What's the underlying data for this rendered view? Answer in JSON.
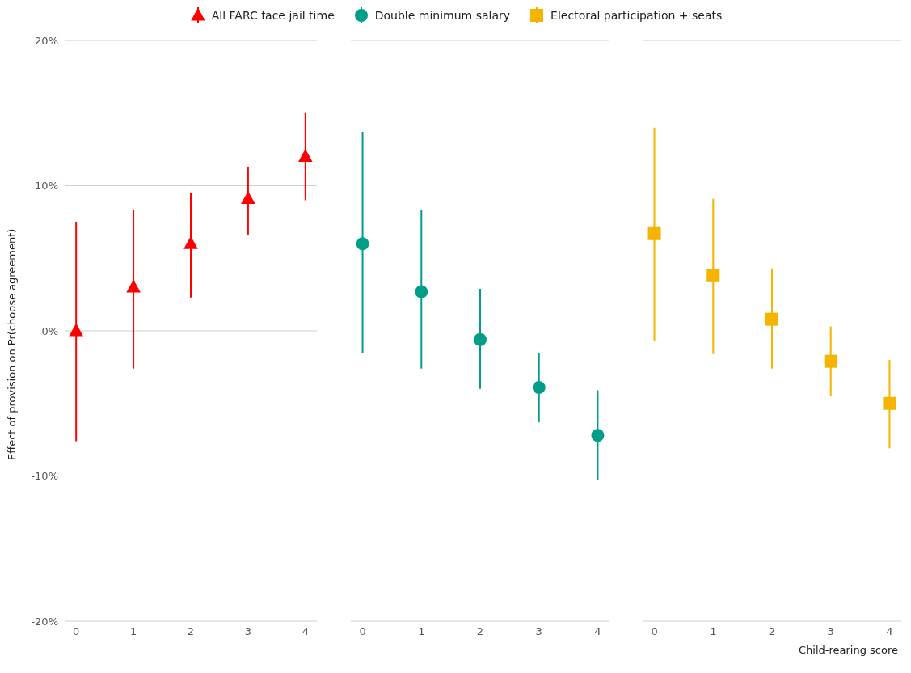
{
  "chart_data": [
    {
      "type": "scatter",
      "categories": [
        "0",
        "1",
        "2",
        "3",
        "4"
      ],
      "ylabel": "Effect of provision on Pr(choose agreement)",
      "ylim": [
        -20,
        20
      ],
      "yticks": [
        {
          "value": -20,
          "label": "-20%"
        },
        {
          "value": -10,
          "label": "-10%"
        },
        {
          "value": 0,
          "label": "0%"
        },
        {
          "value": 10,
          "label": "10%"
        },
        {
          "value": 20,
          "label": "20%"
        }
      ],
      "grid": "y",
      "legend": "top",
      "marker": "triangle",
      "series": [
        {
          "name": "All FARC face jail time",
          "color": "#ff0000",
          "values": [
            0,
            3.0,
            6.0,
            9.1,
            12.0
          ],
          "errors": [
            [
              -7.6,
              7.5
            ],
            [
              -2.6,
              8.3
            ],
            [
              2.3,
              9.5
            ],
            [
              6.6,
              11.3
            ],
            [
              9.0,
              15.0
            ]
          ]
        }
      ]
    },
    {
      "type": "scatter",
      "categories": [
        "0",
        "1",
        "2",
        "3",
        "4"
      ],
      "ylim": [
        -20,
        20
      ],
      "yticks": [
        {
          "value": -20,
          "label": null
        },
        {
          "value": -10,
          "label": null
        },
        {
          "value": 0,
          "label": null
        },
        {
          "value": 10,
          "label": null
        },
        {
          "value": 20,
          "label": null
        }
      ],
      "grid": "y",
      "legend": "top",
      "marker": "circle",
      "tick_labels": "x",
      "series": [
        {
          "name": "Double minimum salary",
          "color": "#009e89",
          "values": [
            6.0,
            2.7,
            -0.6,
            -3.9,
            -7.2
          ],
          "errors": [
            [
              -1.5,
              13.7
            ],
            [
              -2.6,
              8.3
            ],
            [
              -4.0,
              2.9
            ],
            [
              -6.3,
              -1.5
            ],
            [
              -10.3,
              -4.1
            ]
          ]
        }
      ]
    },
    {
      "type": "scatter",
      "categories": [
        "0",
        "1",
        "2",
        "3",
        "4"
      ],
      "xlabel": "Child-rearing score",
      "ylim": [
        -20,
        20
      ],
      "yticks": [
        {
          "value": -20,
          "label": null
        },
        {
          "value": -10,
          "label": null
        },
        {
          "value": 0,
          "label": null
        },
        {
          "value": 10,
          "label": null
        },
        {
          "value": 20,
          "label": null
        }
      ],
      "grid": "y",
      "legend": "top",
      "marker": "square",
      "tick_labels": "x",
      "series": [
        {
          "name": "Electoral participation + seats",
          "color": "#f5b400",
          "values": [
            6.7,
            3.8,
            0.8,
            -2.1,
            -5.0
          ],
          "errors": [
            [
              -0.7,
              14.0
            ],
            [
              -1.6,
              9.1
            ],
            [
              -2.6,
              4.3
            ],
            [
              -4.5,
              0.3
            ],
            [
              -8.1,
              -2.0
            ]
          ]
        }
      ]
    }
  ]
}
